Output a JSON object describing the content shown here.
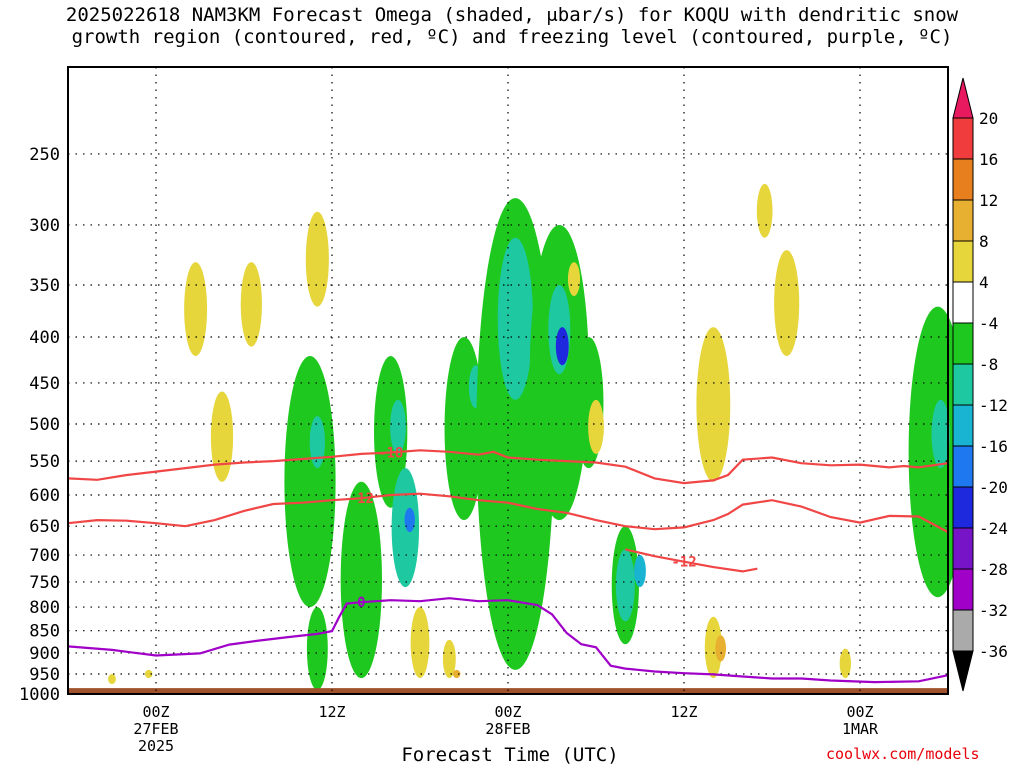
{
  "title_line1": "2025022618 NAM3KM Forecast Omega (shaded, μbar/s) for KOQU with dendritic snow",
  "title_line2": "growth region (contoured, red, ºC) and freezing level (contoured, purple, ºC)",
  "credit": "coolwx.com/models",
  "chart_data": {
    "type": "heatmap",
    "title": "2025022618 NAM3KM Forecast Omega (shaded, μbar/s) for KOQU with dendritic snow growth region (contoured, red, ºC) and freezing level (contoured, purple, ºC)",
    "xlabel": "Forecast Time (UTC)",
    "ylabel": "",
    "x_ticks": [
      {
        "hour": 6,
        "lines": [
          "00Z",
          "27FEB",
          "2025"
        ]
      },
      {
        "hour": 18,
        "lines": [
          "12Z"
        ]
      },
      {
        "hour": 30,
        "lines": [
          "00Z",
          "28FEB"
        ]
      },
      {
        "hour": 42,
        "lines": [
          "12Z"
        ]
      },
      {
        "hour": 54,
        "lines": [
          "00Z",
          "1MAR"
        ]
      }
    ],
    "xlim": [
      0,
      60
    ],
    "y_ticks": [
      250,
      300,
      350,
      400,
      450,
      500,
      550,
      600,
      650,
      700,
      750,
      800,
      850,
      900,
      950,
      1000
    ],
    "ylim": [
      1000,
      200
    ],
    "y_scale": "log-pressure",
    "grid": true,
    "colorbar": {
      "labels": [
        "20",
        "16",
        "12",
        "8",
        "4",
        "-4",
        "-8",
        "-12",
        "-16",
        "-20",
        "-24",
        "-28",
        "-32",
        "-36"
      ],
      "colors": [
        "#e8195e",
        "#f03c3c",
        "#e87f1e",
        "#e8b030",
        "#e6d63c",
        "#ffffff",
        "#1ec81e",
        "#1ec8a0",
        "#19b4d2",
        "#1e78f0",
        "#1e28dc",
        "#7814c8",
        "#a000c8",
        "#aaaaaa",
        "#000000"
      ]
    },
    "series": [
      {
        "name": "-18",
        "color": "#f04646",
        "points": [
          [
            0,
            575
          ],
          [
            2,
            577
          ],
          [
            4,
            570
          ],
          [
            6,
            565
          ],
          [
            8,
            560
          ],
          [
            10,
            555
          ],
          [
            12,
            552
          ],
          [
            14,
            550
          ],
          [
            16,
            547
          ],
          [
            18,
            544
          ],
          [
            20,
            540
          ],
          [
            22,
            538
          ],
          [
            24,
            535
          ],
          [
            26,
            537
          ],
          [
            28,
            541
          ],
          [
            29,
            537
          ],
          [
            30,
            545
          ],
          [
            32,
            548
          ],
          [
            34,
            550
          ],
          [
            36,
            552
          ],
          [
            38,
            558
          ],
          [
            40,
            575
          ],
          [
            42,
            582
          ],
          [
            44,
            578
          ],
          [
            45,
            570
          ],
          [
            46,
            548
          ],
          [
            48,
            545
          ],
          [
            50,
            553
          ],
          [
            52,
            556
          ],
          [
            54,
            555
          ],
          [
            56,
            559
          ],
          [
            57,
            557
          ],
          [
            58,
            559
          ],
          [
            60,
            553
          ]
        ]
      },
      {
        "name": "-12",
        "color": "#f04646",
        "points": [
          [
            0,
            645
          ],
          [
            2,
            640
          ],
          [
            4,
            641
          ],
          [
            6,
            645
          ],
          [
            8,
            650
          ],
          [
            10,
            640
          ],
          [
            12,
            625
          ],
          [
            14,
            614
          ],
          [
            16,
            612
          ],
          [
            18,
            608
          ],
          [
            20,
            605
          ],
          [
            22,
            600
          ],
          [
            24,
            598
          ],
          [
            26,
            602
          ],
          [
            28,
            608
          ],
          [
            30,
            612
          ],
          [
            32,
            622
          ],
          [
            34,
            628
          ],
          [
            36,
            640
          ],
          [
            38,
            650
          ],
          [
            40,
            655
          ],
          [
            42,
            652
          ],
          [
            44,
            640
          ],
          [
            45,
            630
          ],
          [
            46,
            615
          ],
          [
            48,
            608
          ],
          [
            50,
            618
          ],
          [
            52,
            635
          ],
          [
            54,
            644
          ],
          [
            56,
            633
          ],
          [
            58,
            634
          ],
          [
            60,
            660
          ]
        ]
      },
      {
        "name": "-12",
        "color": "#f04646",
        "points": [
          [
            38,
            690
          ],
          [
            40,
            702
          ],
          [
            42,
            712
          ],
          [
            44,
            722
          ],
          [
            46,
            730
          ],
          [
            47,
            725
          ]
        ]
      },
      {
        "name": "0",
        "color": "#a000c8",
        "points": [
          [
            0,
            885
          ],
          [
            3,
            893
          ],
          [
            6,
            906
          ],
          [
            9,
            901
          ],
          [
            11,
            881
          ],
          [
            13,
            872
          ],
          [
            15,
            864
          ],
          [
            17,
            857
          ],
          [
            18,
            851
          ],
          [
            18.5,
            820
          ],
          [
            19,
            793
          ],
          [
            20,
            790
          ],
          [
            22,
            786
          ],
          [
            24,
            788
          ],
          [
            26,
            782
          ],
          [
            28,
            788
          ],
          [
            30,
            786
          ],
          [
            32,
            796
          ],
          [
            33,
            815
          ],
          [
            34,
            855
          ],
          [
            35,
            880
          ],
          [
            36,
            887
          ],
          [
            37,
            930
          ],
          [
            38,
            937
          ],
          [
            40,
            944
          ],
          [
            42,
            948
          ],
          [
            44,
            951
          ],
          [
            46,
            956
          ],
          [
            48,
            961
          ],
          [
            50,
            961
          ],
          [
            52,
            966
          ],
          [
            55,
            970
          ],
          [
            58,
            968
          ],
          [
            60,
            953
          ]
        ]
      }
    ],
    "omega_cells": [
      {
        "hour": 3,
        "p": [
          950,
          975
        ],
        "value": 5,
        "color": "#e6d63c"
      },
      {
        "hour": 5.5,
        "p": [
          940,
          960
        ],
        "value": 5,
        "color": "#e6d63c"
      },
      {
        "hour": 8.7,
        "p": [
          330,
          420
        ],
        "value": 5,
        "color": "#e6d63c"
      },
      {
        "hour": 10.5,
        "p": [
          460,
          580
        ],
        "value": 5,
        "color": "#e6d63c"
      },
      {
        "hour": 12.5,
        "p": [
          330,
          410
        ],
        "value": 5,
        "color": "#e6d63c"
      },
      {
        "hour": 17,
        "p": [
          290,
          370
        ],
        "value": 5,
        "color": "#e6d63c"
      },
      {
        "hour": 16.5,
        "p": [
          420,
          800
        ],
        "value": -8,
        "color": "#1ec81e"
      },
      {
        "hour": 17,
        "p": [
          800,
          990
        ],
        "value": -8,
        "color": "#1ec81e"
      },
      {
        "hour": 17,
        "p": [
          490,
          560
        ],
        "value": -12,
        "color": "#1ec8a0"
      },
      {
        "hour": 20,
        "p": [
          580,
          960
        ],
        "value": -8,
        "color": "#1ec81e"
      },
      {
        "hour": 22,
        "p": [
          420,
          620
        ],
        "value": -8,
        "color": "#1ec81e"
      },
      {
        "hour": 22.5,
        "p": [
          470,
          540
        ],
        "value": -12,
        "color": "#1ec8a0"
      },
      {
        "hour": 23,
        "p": [
          560,
          760
        ],
        "value": -12,
        "color": "#1ec8a0"
      },
      {
        "hour": 23.3,
        "p": [
          620,
          660
        ],
        "value": -20,
        "color": "#1e78f0"
      },
      {
        "hour": 24,
        "p": [
          800,
          960
        ],
        "value": 5,
        "color": "#e6d63c"
      },
      {
        "hour": 26,
        "p": [
          870,
          960
        ],
        "value": 5,
        "color": "#e6d63c"
      },
      {
        "hour": 26.5,
        "p": [
          940,
          960
        ],
        "value": 9,
        "color": "#e8b030"
      },
      {
        "hour": 27,
        "p": [
          400,
          640
        ],
        "value": -8,
        "color": "#1ec81e"
      },
      {
        "hour": 27.8,
        "p": [
          430,
          480
        ],
        "value": -12,
        "color": "#1ec8a0"
      },
      {
        "hour": 30.5,
        "p": [
          280,
          940
        ],
        "value": -8,
        "color": "#1ec81e"
      },
      {
        "hour": 30.5,
        "p": [
          310,
          470
        ],
        "value": -12,
        "color": "#1ec8a0"
      },
      {
        "hour": 33.5,
        "p": [
          300,
          640
        ],
        "value": -8,
        "color": "#1ec81e"
      },
      {
        "hour": 33.5,
        "p": [
          350,
          440
        ],
        "value": -12,
        "color": "#1ec8a0"
      },
      {
        "hour": 33.7,
        "p": [
          390,
          430
        ],
        "value": -24,
        "color": "#1e28dc"
      },
      {
        "hour": 34.5,
        "p": [
          330,
          360
        ],
        "value": 5,
        "color": "#e6d63c"
      },
      {
        "hour": 35.5,
        "p": [
          400,
          560
        ],
        "value": -8,
        "color": "#1ec81e"
      },
      {
        "hour": 36,
        "p": [
          470,
          540
        ],
        "value": 5,
        "color": "#e6d63c"
      },
      {
        "hour": 38,
        "p": [
          650,
          880
        ],
        "value": -8,
        "color": "#1ec81e"
      },
      {
        "hour": 38,
        "p": [
          690,
          830
        ],
        "value": -12,
        "color": "#1ec8a0"
      },
      {
        "hour": 39,
        "p": [
          700,
          760
        ],
        "value": -16,
        "color": "#19b4d2"
      },
      {
        "hour": 44,
        "p": [
          390,
          580
        ],
        "value": 5,
        "color": "#e6d63c"
      },
      {
        "hour": 44,
        "p": [
          820,
          960
        ],
        "value": 5,
        "color": "#e6d63c"
      },
      {
        "hour": 44.5,
        "p": [
          860,
          920
        ],
        "value": 9,
        "color": "#e8b030"
      },
      {
        "hour": 47.5,
        "p": [
          270,
          310
        ],
        "value": 5,
        "color": "#e6d63c"
      },
      {
        "hour": 49,
        "p": [
          320,
          420
        ],
        "value": 5,
        "color": "#e6d63c"
      },
      {
        "hour": 53,
        "p": [
          890,
          960
        ],
        "value": 5,
        "color": "#e6d63c"
      },
      {
        "hour": 59.3,
        "p": [
          370,
          780
        ],
        "value": -8,
        "color": "#1ec81e"
      },
      {
        "hour": 59.5,
        "p": [
          470,
          560
        ],
        "value": -12,
        "color": "#1ec8a0"
      }
    ],
    "surface_color": "#a0522d"
  }
}
